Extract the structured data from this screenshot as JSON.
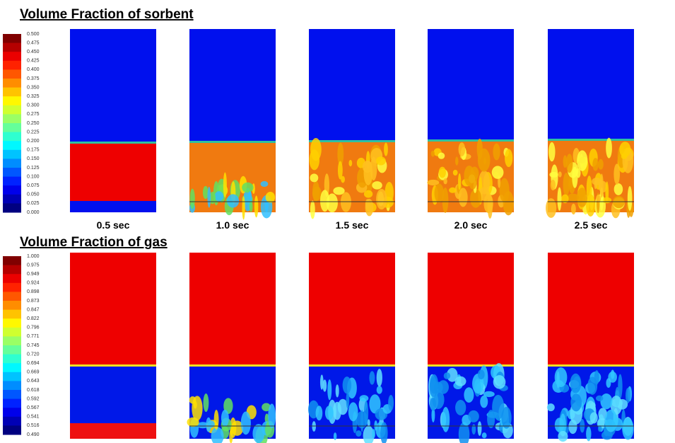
{
  "sections": [
    {
      "title": "Volume  Fraction  of sorbent",
      "colorbar": [
        "0.500",
        "0.475",
        "0.450",
        "0.425",
        "0.400",
        "0.375",
        "0.350",
        "0.325",
        "0.300",
        "0.275",
        "0.250",
        "0.225",
        "0.200",
        "0.175",
        "0.150",
        "0.125",
        "0.100",
        "0.075",
        "0.050",
        "0.025",
        "0.000"
      ],
      "times": [
        "0.5 sec",
        "1.0 sec",
        "1.5 sec",
        "2.0 sec",
        "2.5 sec"
      ]
    },
    {
      "title": "Volume  Fraction  of gas",
      "colorbar": [
        "1.000",
        "0.975",
        "0.949",
        "0.924",
        "0.898",
        "0.873",
        "0.847",
        "0.822",
        "0.796",
        "0.771",
        "0.745",
        "0.720",
        "0.694",
        "0.669",
        "0.643",
        "0.618",
        "0.592",
        "0.567",
        "0.541",
        "0.516",
        "0.490"
      ]
    }
  ]
}
